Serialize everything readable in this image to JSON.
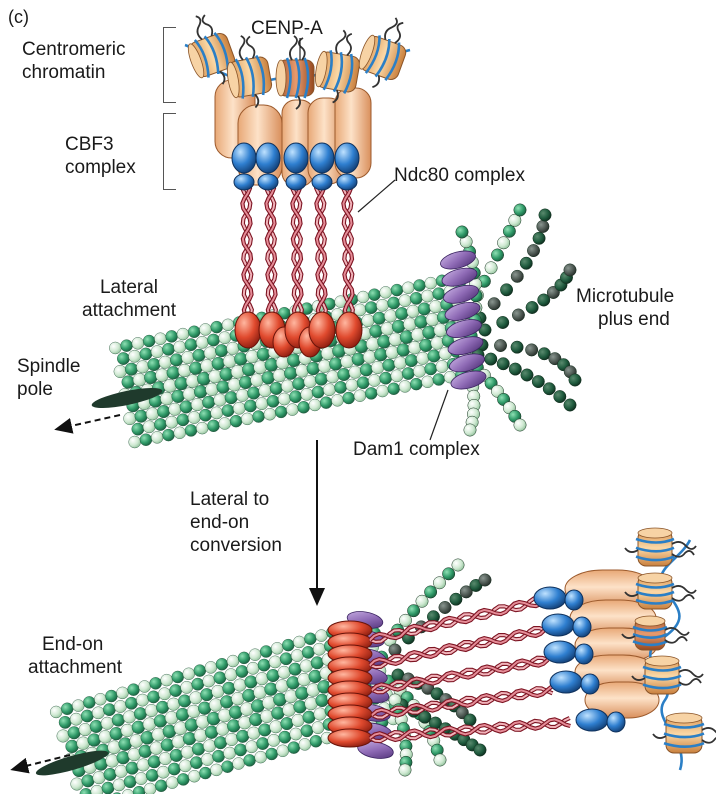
{
  "panel_label": "(c)",
  "labels": {
    "centromeric_chromatin": [
      "Centromeric",
      "chromatin"
    ],
    "cenp_a": "CENP-A",
    "cbf3_complex": [
      "CBF3",
      "complex"
    ],
    "ndc80_complex": "Ndc80 complex",
    "lateral_attachment": [
      "Lateral",
      "attachment"
    ],
    "microtubule_plus_end": [
      "Microtubule",
      "plus end"
    ],
    "spindle_pole": [
      "Spindle",
      "pole"
    ],
    "dam1_complex": "Dam1 complex",
    "conversion": [
      "Lateral to",
      "end-on",
      "conversion"
    ],
    "end_on_attachment": [
      "End-on",
      "attachment"
    ]
  },
  "colors": {
    "microtubule_light": "#cfe9d2",
    "microtubule_mid": "#2f9a68",
    "microtubule_dark": "#1f5b3e",
    "microtubule_dark_protofilament": "#3f4a44",
    "nucleosome": "#f3c48f",
    "cenp_a_nucleosome": "#c8764a",
    "dna": "#2b7fc6",
    "cbf3": "#f6c8a0",
    "ndc80_head": "#2f7fd0",
    "ndc80_coil": "#c0283a",
    "ndc80_globule": "#e04a2e",
    "dam1": "#8f6bb6"
  }
}
